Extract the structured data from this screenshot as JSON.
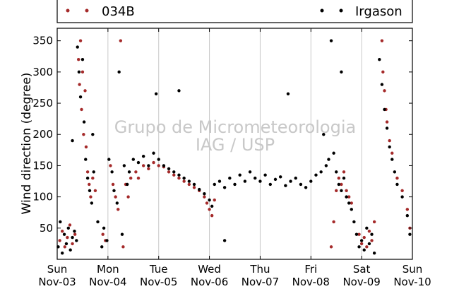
{
  "chart_data": {
    "type": "scatter",
    "title": "",
    "xlabel": "",
    "ylabel": "Wind direction (degree)",
    "ylim": [
      0,
      370
    ],
    "yticks": [
      50,
      100,
      150,
      200,
      250,
      300,
      350
    ],
    "xlim": [
      0,
      7
    ],
    "xticks": [
      {
        "day": "Sun",
        "date": "Nov-03",
        "x": 0
      },
      {
        "day": "Mon",
        "date": "Nov-04",
        "x": 1
      },
      {
        "day": "Tue",
        "date": "Nov-05",
        "x": 2
      },
      {
        "day": "Wed",
        "date": "Nov-06",
        "x": 3
      },
      {
        "day": "Thu",
        "date": "Nov-07",
        "x": 4
      },
      {
        "day": "Fri",
        "date": "Nov-08",
        "x": 5
      },
      {
        "day": "Sat",
        "date": "Nov-09",
        "x": 6
      },
      {
        "day": "Sun",
        "date": "Nov-10",
        "x": 7
      }
    ],
    "grid": {
      "x": true,
      "y": false
    },
    "legend_position": "top",
    "watermark": [
      "Grupo de Micrometeorologia",
      "IAG / USP"
    ],
    "series": [
      {
        "name": "034B",
        "color": "#a52a2a",
        "points": [
          [
            0.05,
            30
          ],
          [
            0.1,
            45
          ],
          [
            0.15,
            20
          ],
          [
            0.2,
            35
          ],
          [
            0.25,
            55
          ],
          [
            0.3,
            25
          ],
          [
            0.35,
            40
          ],
          [
            0.42,
            320
          ],
          [
            0.44,
            280
          ],
          [
            0.46,
            350
          ],
          [
            0.48,
            240
          ],
          [
            0.5,
            300
          ],
          [
            0.52,
            200
          ],
          [
            0.55,
            270
          ],
          [
            0.57,
            180
          ],
          [
            0.6,
            140
          ],
          [
            0.63,
            120
          ],
          [
            0.66,
            100
          ],
          [
            0.7,
            130
          ],
          [
            0.75,
            110
          ],
          [
            0.9,
            40
          ],
          [
            0.95,
            30
          ],
          [
            1.05,
            150
          ],
          [
            1.1,
            120
          ],
          [
            1.15,
            100
          ],
          [
            1.2,
            80
          ],
          [
            1.25,
            350
          ],
          [
            1.3,
            20
          ],
          [
            1.35,
            120
          ],
          [
            1.4,
            100
          ],
          [
            1.45,
            130
          ],
          [
            1.55,
            140
          ],
          [
            1.6,
            130
          ],
          [
            1.7,
            150
          ],
          [
            1.8,
            145
          ],
          [
            1.9,
            155
          ],
          [
            2.0,
            150
          ],
          [
            2.1,
            148
          ],
          [
            2.2,
            140
          ],
          [
            2.3,
            135
          ],
          [
            2.4,
            130
          ],
          [
            2.5,
            125
          ],
          [
            2.6,
            120
          ],
          [
            2.7,
            115
          ],
          [
            2.8,
            110
          ],
          [
            2.9,
            100
          ],
          [
            2.95,
            90
          ],
          [
            3.0,
            80
          ],
          [
            3.05,
            70
          ],
          [
            3.1,
            95
          ],
          [
            5.4,
            20
          ],
          [
            5.45,
            60
          ],
          [
            5.5,
            110
          ],
          [
            5.55,
            130
          ],
          [
            5.6,
            120
          ],
          [
            5.65,
            140
          ],
          [
            5.7,
            110
          ],
          [
            5.75,
            100
          ],
          [
            5.8,
            90
          ],
          [
            5.95,
            40
          ],
          [
            6.0,
            25
          ],
          [
            6.05,
            35
          ],
          [
            6.1,
            20
          ],
          [
            6.15,
            45
          ],
          [
            6.2,
            30
          ],
          [
            6.25,
            60
          ],
          [
            6.4,
            350
          ],
          [
            6.42,
            300
          ],
          [
            6.45,
            270
          ],
          [
            6.48,
            240
          ],
          [
            6.5,
            220
          ],
          [
            6.55,
            190
          ],
          [
            6.6,
            170
          ],
          [
            6.7,
            130
          ],
          [
            6.8,
            110
          ],
          [
            6.9,
            80
          ],
          [
            6.95,
            50
          ]
        ]
      },
      {
        "name": "Irgason",
        "color": "#000000",
        "points": [
          [
            0.02,
            20
          ],
          [
            0.06,
            60
          ],
          [
            0.1,
            10
          ],
          [
            0.14,
            40
          ],
          [
            0.18,
            25
          ],
          [
            0.22,
            50
          ],
          [
            0.26,
            15
          ],
          [
            0.3,
            35
          ],
          [
            0.34,
            45
          ],
          [
            0.38,
            30
          ],
          [
            0.4,
            340
          ],
          [
            0.43,
            300
          ],
          [
            0.46,
            260
          ],
          [
            0.5,
            320
          ],
          [
            0.53,
            220
          ],
          [
            0.56,
            160
          ],
          [
            0.6,
            130
          ],
          [
            0.64,
            110
          ],
          [
            0.68,
            90
          ],
          [
            0.72,
            140
          ],
          [
            0.8,
            60
          ],
          [
            0.88,
            20
          ],
          [
            0.92,
            50
          ],
          [
            0.98,
            30
          ],
          [
            1.02,
            160
          ],
          [
            1.08,
            140
          ],
          [
            1.12,
            110
          ],
          [
            1.18,
            90
          ],
          [
            1.22,
            300
          ],
          [
            1.28,
            40
          ],
          [
            1.32,
            150
          ],
          [
            1.38,
            120
          ],
          [
            1.42,
            140
          ],
          [
            1.5,
            160
          ],
          [
            1.6,
            155
          ],
          [
            1.7,
            165
          ],
          [
            1.8,
            150
          ],
          [
            1.9,
            170
          ],
          [
            2.0,
            160
          ],
          [
            2.1,
            150
          ],
          [
            2.2,
            145
          ],
          [
            2.3,
            140
          ],
          [
            2.4,
            135
          ],
          [
            2.5,
            130
          ],
          [
            2.6,
            125
          ],
          [
            2.7,
            120
          ],
          [
            2.8,
            112
          ],
          [
            2.9,
            105
          ],
          [
            3.0,
            95
          ],
          [
            3.05,
            85
          ],
          [
            3.1,
            120
          ],
          [
            3.2,
            125
          ],
          [
            3.3,
            115
          ],
          [
            3.4,
            130
          ],
          [
            3.5,
            120
          ],
          [
            3.6,
            135
          ],
          [
            3.7,
            125
          ],
          [
            3.8,
            140
          ],
          [
            3.9,
            130
          ],
          [
            4.0,
            125
          ],
          [
            4.1,
            135
          ],
          [
            4.2,
            120
          ],
          [
            4.3,
            128
          ],
          [
            4.4,
            132
          ],
          [
            4.5,
            118
          ],
          [
            4.6,
            125
          ],
          [
            4.7,
            130
          ],
          [
            4.8,
            120
          ],
          [
            4.9,
            115
          ],
          [
            5.0,
            125
          ],
          [
            5.1,
            135
          ],
          [
            5.2,
            140
          ],
          [
            5.3,
            150
          ],
          [
            5.35,
            160
          ],
          [
            5.4,
            350
          ],
          [
            5.45,
            170
          ],
          [
            5.5,
            140
          ],
          [
            5.55,
            120
          ],
          [
            5.6,
            110
          ],
          [
            5.65,
            130
          ],
          [
            5.7,
            100
          ],
          [
            5.75,
            90
          ],
          [
            5.8,
            80
          ],
          [
            5.85,
            60
          ],
          [
            5.9,
            40
          ],
          [
            5.95,
            20
          ],
          [
            6.0,
            30
          ],
          [
            6.05,
            15
          ],
          [
            6.1,
            50
          ],
          [
            6.15,
            25
          ],
          [
            6.2,
            40
          ],
          [
            6.25,
            10
          ],
          [
            6.35,
            320
          ],
          [
            6.4,
            280
          ],
          [
            6.45,
            240
          ],
          [
            6.5,
            210
          ],
          [
            6.55,
            180
          ],
          [
            6.6,
            160
          ],
          [
            6.65,
            140
          ],
          [
            6.7,
            120
          ],
          [
            6.8,
            100
          ],
          [
            6.9,
            70
          ],
          [
            6.95,
            40
          ],
          [
            4.55,
            265
          ],
          [
            3.3,
            30
          ],
          [
            2.4,
            270
          ],
          [
            1.95,
            265
          ],
          [
            5.25,
            200
          ],
          [
            5.6,
            300
          ],
          [
            0.7,
            200
          ],
          [
            0.3,
            190
          ]
        ]
      }
    ]
  }
}
